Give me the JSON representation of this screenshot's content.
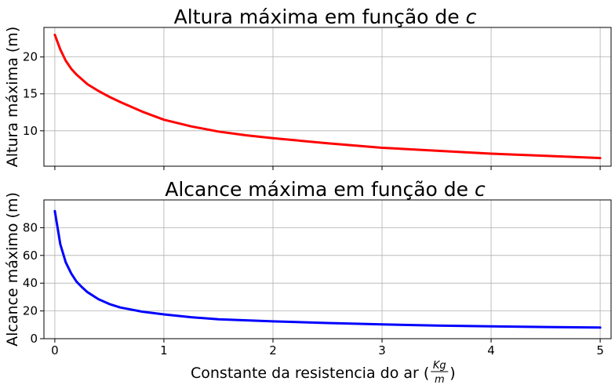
{
  "chart_data": [
    {
      "type": "line",
      "title_text": "Altura máxima em função de ",
      "title_var": "c",
      "xlabel": "",
      "ylabel": "Altura máxima (m)",
      "xlim": [
        -0.1,
        5.1
      ],
      "ylim": [
        5.2,
        24.0
      ],
      "xticks": [
        0,
        1,
        2,
        3,
        4,
        5
      ],
      "xticklabels_visible": false,
      "yticks": [
        10,
        15,
        20
      ],
      "ytick_labels": [
        "10",
        "15",
        "20"
      ],
      "grid": true,
      "series": [
        {
          "color": "#ff0000",
          "x": [
            0,
            0.05,
            0.1,
            0.15,
            0.2,
            0.3,
            0.4,
            0.5,
            0.6,
            0.8,
            1.0,
            1.25,
            1.5,
            1.75,
            2.0,
            2.5,
            3.0,
            3.5,
            4.0,
            4.5,
            5.0
          ],
          "y": [
            23.0,
            21.0,
            19.5,
            18.4,
            17.6,
            16.3,
            15.4,
            14.6,
            13.9,
            12.6,
            11.5,
            10.6,
            9.9,
            9.4,
            9.0,
            8.3,
            7.7,
            7.3,
            6.9,
            6.6,
            6.3
          ]
        }
      ]
    },
    {
      "type": "line",
      "title_text": "Alcance máxima em função de ",
      "title_var": "c",
      "xlabel_text": "Constante da resistencia do ar (",
      "xlabel_frac_num": "Kg",
      "xlabel_frac_den": "m",
      "xlabel_close": ")",
      "ylabel": "Alcance máximo (m)",
      "xlim": [
        -0.1,
        5.1
      ],
      "ylim": [
        0,
        100
      ],
      "xticks": [
        0,
        1,
        2,
        3,
        4,
        5
      ],
      "xtick_labels": [
        "0",
        "1",
        "2",
        "3",
        "4",
        "5"
      ],
      "yticks": [
        0,
        20,
        40,
        60,
        80
      ],
      "ytick_labels": [
        "0",
        "20",
        "40",
        "60",
        "80"
      ],
      "grid": true,
      "series": [
        {
          "color": "#0000ff",
          "x": [
            0,
            0.05,
            0.1,
            0.15,
            0.2,
            0.25,
            0.3,
            0.4,
            0.5,
            0.6,
            0.8,
            1.0,
            1.25,
            1.5,
            2.0,
            2.5,
            3.0,
            3.5,
            4.0,
            4.5,
            5.0
          ],
          "y": [
            92,
            68,
            55,
            47,
            41,
            37,
            33.5,
            28.5,
            25,
            22.5,
            19.5,
            17.5,
            15.5,
            14.0,
            12.5,
            11.3,
            10.3,
            9.5,
            8.9,
            8.4,
            8.0
          ]
        }
      ]
    }
  ]
}
